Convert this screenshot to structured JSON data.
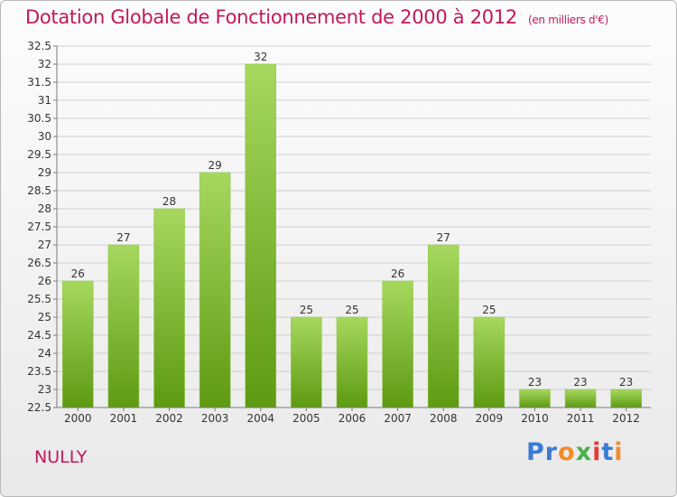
{
  "header": {
    "title": "Dotation Globale de Fonctionnement de 2000 à 2012",
    "subtitle": "(en milliers d'€)"
  },
  "commune": "NULLY",
  "logo": {
    "text": "Proxiti",
    "letters": [
      {
        "ch": "P",
        "color": "#3a7bd5"
      },
      {
        "ch": "r",
        "color": "#3a7bd5"
      },
      {
        "ch": "o",
        "color": "#f28c28"
      },
      {
        "ch": "x",
        "color": "#4caf50"
      },
      {
        "ch": "i",
        "color": "#e53935"
      },
      {
        "ch": "t",
        "color": "#3a7bd5"
      },
      {
        "ch": "i",
        "color": "#f28c28"
      }
    ]
  },
  "colors": {
    "bar_top": "#a6d85e",
    "bar_bottom": "#5e9a12",
    "grid": "#cfcfcf",
    "axis": "#7a7a7a",
    "accent": "#c2185b"
  },
  "chart_data": {
    "type": "bar",
    "title": "Dotation Globale de Fonctionnement de 2000 à 2012",
    "subtitle": "(en milliers d'€)",
    "categories": [
      "2000",
      "2001",
      "2002",
      "2003",
      "2004",
      "2005",
      "2006",
      "2007",
      "2008",
      "2009",
      "2010",
      "2011",
      "2012"
    ],
    "values": [
      26,
      27,
      28,
      29,
      32,
      25,
      25,
      26,
      27,
      25,
      23,
      23,
      23
    ],
    "data_labels": [
      "26",
      "27",
      "28",
      "29",
      "32",
      "25",
      "25",
      "26",
      "27",
      "25",
      "23",
      "23",
      "23"
    ],
    "ylim": [
      22.5,
      32.5
    ],
    "yticks": [
      "22.5",
      "23",
      "23.5",
      "24",
      "24.5",
      "25",
      "25.5",
      "26",
      "26.5",
      "27",
      "27.5",
      "28",
      "28.5",
      "29",
      "29.5",
      "30",
      "30.5",
      "31",
      "31.5",
      "32",
      "32.5"
    ],
    "grid": true,
    "legend": "none"
  }
}
